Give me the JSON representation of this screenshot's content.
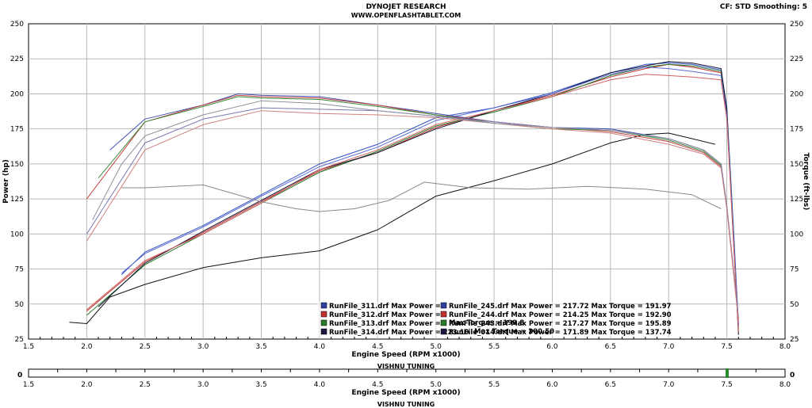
{
  "header": {
    "title": "DYNOJET RESEARCH",
    "subtitle": "WWW.OPENFLASHTABLET.COM",
    "cf_info": "CF: STD  Smoothing: 5"
  },
  "chart_data": {
    "type": "line",
    "xlabel": "Engine Speed (RPM x1000)",
    "ylabel_left": "Power (hp)",
    "ylabel_right": "Torque (ft-lbs)",
    "footer": "VISHNU TUNING",
    "xlim": [
      1.5,
      8.0
    ],
    "ylim": [
      25,
      250
    ],
    "x_ticks": [
      "1.5",
      "2.0",
      "2.5",
      "3.0",
      "3.5",
      "4.0",
      "4.5",
      "5.0",
      "5.5",
      "6.0",
      "6.5",
      "7.0",
      "7.5",
      "8.0"
    ],
    "y_ticks": [
      "25",
      "50",
      "75",
      "100",
      "125",
      "150",
      "175",
      "200",
      "225",
      "250"
    ],
    "grid": true,
    "legend": [
      {
        "text": "RunFile_311.drf Max Power = ",
        "color": "#3040a0"
      },
      {
        "text": "RunFile_312.drf Max Power = ",
        "color": "#c03030"
      },
      {
        "text": "RunFile_313.drf Max Power = ",
        "color": "#2a7a2a"
      },
      {
        "text": "RunFile_314.drf Max Power = 223.10",
        "color": "#1a1a40"
      }
    ],
    "legend_right": [
      {
        "text": "RunFile_245.drf Max Power = 217.72   Max Torque = 191.97",
        "color": "#3040a0"
      },
      {
        "text": "RunFile_244.drf Max Power = 214.25   Max Torque = 192.90",
        "color": "#c03030"
      },
      {
        "text": "RunFile_243.drf Max Power = 217.27   Max Torque = 195.89",
        "color": "#2a7a2a"
      },
      {
        "text": "RunFile_014.drf Max Power = 171.89   Max Torque = 137.74",
        "color": "#1a1a40"
      }
    ],
    "legend_overlap_fragments": [
      "Max Torque = 199.8",
      "Max Torque = 200.50"
    ],
    "series": [
      {
        "color": "#3050c0",
        "kind": "power",
        "x": [
          2.3,
          2.5,
          3.0,
          3.5,
          4.0,
          4.5,
          5.0,
          5.5,
          6.0,
          6.5,
          6.8,
          7.0,
          7.2,
          7.45,
          7.5,
          7.56,
          7.6
        ],
        "y": [
          71,
          87,
          106,
          128,
          150,
          164,
          183,
          190,
          201,
          215,
          221,
          222,
          221,
          217,
          190,
          100,
          35
        ]
      },
      {
        "color": "#c03030",
        "kind": "power",
        "x": [
          2.0,
          2.5,
          3.0,
          3.5,
          4.0,
          4.5,
          5.0,
          5.5,
          6.0,
          6.5,
          6.8,
          7.0,
          7.2,
          7.45,
          7.5,
          7.56,
          7.6
        ],
        "y": [
          45,
          80,
          101,
          123,
          145,
          158,
          176,
          188,
          199,
          212,
          218,
          221,
          219,
          215,
          185,
          90,
          30
        ]
      },
      {
        "color": "#2a7a2a",
        "kind": "power",
        "x": [
          2.0,
          2.5,
          3.0,
          3.5,
          4.0,
          4.5,
          5.0,
          5.5,
          6.0,
          6.5,
          6.8,
          7.0,
          7.2,
          7.45,
          7.5,
          7.56,
          7.6
        ],
        "y": [
          42,
          78,
          100,
          122,
          144,
          159,
          177,
          187,
          198,
          213,
          219,
          221,
          220,
          216,
          188,
          95,
          32
        ]
      },
      {
        "color": "#101030",
        "kind": "power",
        "x": [
          2.1,
          2.5,
          3.0,
          3.5,
          4.0,
          4.5,
          5.0,
          5.5,
          6.0,
          6.5,
          6.8,
          7.0,
          7.2,
          7.45,
          7.5,
          7.56,
          7.6
        ],
        "y": [
          48,
          79,
          102,
          124,
          146,
          158,
          175,
          188,
          200,
          215,
          220,
          223,
          222,
          218,
          189,
          92,
          28
        ]
      },
      {
        "color": "#5a6ad0",
        "kind": "power",
        "x": [
          2.3,
          2.5,
          3.0,
          3.5,
          4.0,
          4.5,
          5.0,
          5.5,
          6.0,
          6.5,
          6.8,
          7.0,
          7.2,
          7.45,
          7.5,
          7.56,
          7.6
        ],
        "y": [
          72,
          86,
          105,
          127,
          148,
          162,
          181,
          190,
          200,
          214,
          219,
          218,
          216,
          213,
          185,
          95,
          35
        ]
      },
      {
        "color": "#d06060",
        "kind": "power",
        "x": [
          2.0,
          2.5,
          3.0,
          3.5,
          4.0,
          4.5,
          5.0,
          5.5,
          6.0,
          6.5,
          6.8,
          7.0,
          7.2,
          7.45,
          7.5,
          7.56,
          7.6
        ],
        "y": [
          46,
          81,
          100,
          122,
          146,
          160,
          178,
          188,
          198,
          210,
          214,
          213,
          212,
          210,
          182,
          90,
          30
        ]
      },
      {
        "color": "#111111",
        "kind": "power",
        "x": [
          1.85,
          2.0,
          2.2,
          2.5,
          3.0,
          3.5,
          4.0,
          4.5,
          5.0,
          5.5,
          6.0,
          6.5,
          6.8,
          7.0,
          7.2,
          7.4
        ],
        "y": [
          37,
          36,
          55,
          64,
          76,
          83,
          88,
          103,
          127,
          138,
          150,
          165,
          171,
          172,
          168,
          164
        ]
      },
      {
        "color": "#4050b0",
        "kind": "torque",
        "x": [
          2.2,
          2.5,
          3.0,
          3.3,
          3.5,
          4.0,
          4.5,
          5.0,
          5.5,
          6.0,
          6.5,
          7.0,
          7.3,
          7.45,
          7.5,
          7.55,
          7.6
        ],
        "y": [
          160,
          182,
          192,
          200,
          199,
          198,
          192,
          186,
          180,
          176,
          175,
          168,
          160,
          150,
          120,
          80,
          40
        ]
      },
      {
        "color": "#c04040",
        "kind": "torque",
        "x": [
          2.0,
          2.5,
          3.0,
          3.3,
          3.5,
          4.0,
          4.5,
          5.0,
          5.5,
          6.0,
          6.5,
          7.0,
          7.3,
          7.45,
          7.5,
          7.55,
          7.6
        ],
        "y": [
          125,
          180,
          192,
          199,
          198,
          197,
          192,
          185,
          180,
          176,
          173,
          166,
          158,
          148,
          118,
          78,
          38
        ]
      },
      {
        "color": "#3a8a3a",
        "kind": "torque",
        "x": [
          2.1,
          2.5,
          3.0,
          3.3,
          3.5,
          4.0,
          4.5,
          5.0,
          5.5,
          6.0,
          6.5,
          7.0,
          7.3,
          7.45,
          7.5,
          7.55,
          7.6
        ],
        "y": [
          140,
          180,
          191,
          198,
          197,
          196,
          191,
          185,
          179,
          175,
          174,
          167,
          159,
          149,
          119,
          79,
          39
        ]
      },
      {
        "color": "#7a7ab0",
        "kind": "torque",
        "x": [
          2.0,
          2.5,
          3.0,
          3.5,
          4.0,
          4.5,
          5.0,
          5.5,
          6.0,
          6.5,
          7.0,
          7.3,
          7.45,
          7.5,
          7.55,
          7.6
        ],
        "y": [
          100,
          165,
          182,
          190,
          189,
          188,
          184,
          180,
          176,
          174,
          168,
          160,
          150,
          120,
          80,
          40
        ]
      },
      {
        "color": "#d08080",
        "kind": "torque",
        "x": [
          2.0,
          2.5,
          3.0,
          3.5,
          4.0,
          4.5,
          5.0,
          5.5,
          6.0,
          6.5,
          7.0,
          7.3,
          7.45,
          7.5,
          7.55,
          7.6
        ],
        "y": [
          95,
          160,
          178,
          188,
          186,
          185,
          183,
          179,
          175,
          172,
          164,
          157,
          147,
          118,
          78,
          38
        ]
      },
      {
        "color": "#9090a0",
        "kind": "torque",
        "x": [
          2.05,
          2.3,
          2.5,
          3.0,
          3.5,
          4.0,
          4.5,
          5.0,
          5.5,
          6.0,
          6.5,
          7.0,
          7.3,
          7.45
        ],
        "y": [
          110,
          150,
          170,
          185,
          195,
          193,
          188,
          184,
          179,
          176,
          174,
          168,
          160,
          150
        ]
      },
      {
        "color": "#888888",
        "kind": "torque",
        "x": [
          2.3,
          2.5,
          3.0,
          3.5,
          3.8,
          4.0,
          4.3,
          4.6,
          4.9,
          5.3,
          5.8,
          6.3,
          6.8,
          7.2,
          7.45
        ],
        "y": [
          133,
          133,
          135,
          123,
          118,
          116,
          118,
          124,
          137,
          133,
          132,
          134,
          132,
          128,
          118
        ]
      }
    ]
  }
}
